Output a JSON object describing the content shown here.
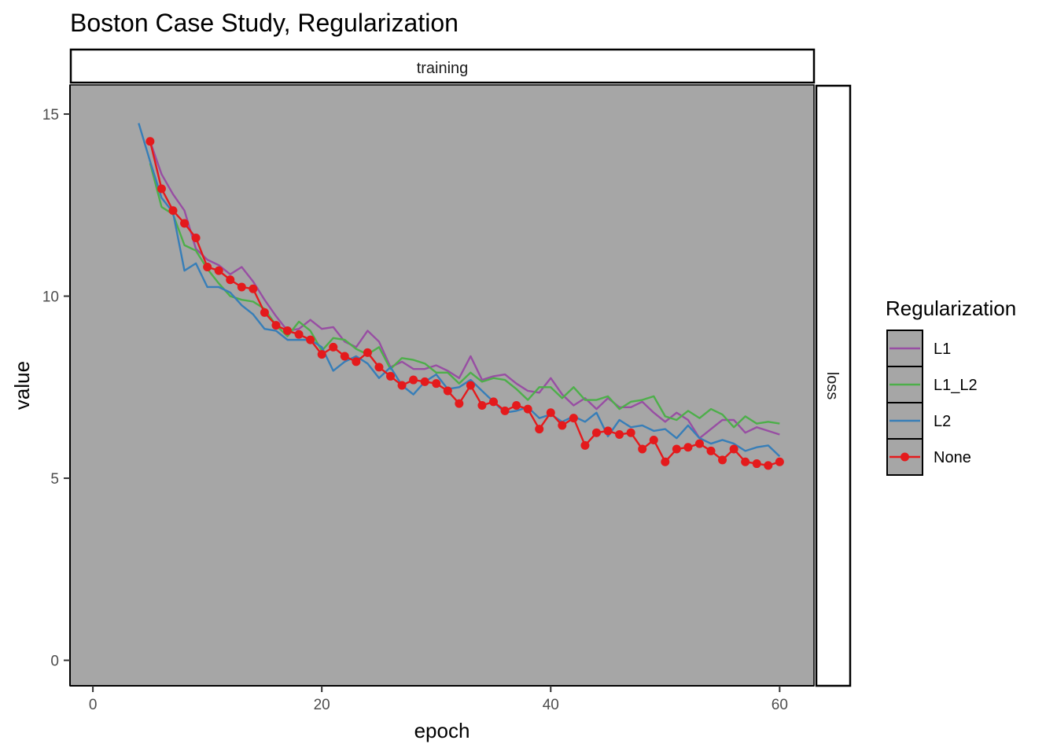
{
  "chart_data": {
    "type": "line",
    "title": "Boston Case Study, Regularization",
    "xlabel": "epoch",
    "ylabel": "value",
    "facet_top": "training",
    "facet_right": "loss",
    "xlim": [
      -2,
      63
    ],
    "ylim": [
      -0.7,
      15.8
    ],
    "x_ticks": [
      0,
      20,
      40,
      60
    ],
    "y_ticks": [
      0,
      5,
      10,
      15
    ],
    "panel_background": "#a6a6a6",
    "legend": {
      "title": "Regularization",
      "placement": "right"
    },
    "series": [
      {
        "name": "L1",
        "color": "#984ea3",
        "points": false,
        "x": [
          5,
          6,
          7,
          8,
          9,
          10,
          11,
          12,
          13,
          14,
          15,
          16,
          17,
          18,
          19,
          20,
          21,
          22,
          23,
          24,
          25,
          26,
          27,
          28,
          29,
          30,
          31,
          32,
          33,
          34,
          35,
          36,
          37,
          38,
          39,
          40,
          41,
          42,
          43,
          44,
          45,
          46,
          47,
          48,
          49,
          50,
          51,
          52,
          53,
          54,
          55,
          56,
          57,
          58,
          59,
          60
        ],
        "values": [
          14.25,
          13.35,
          12.8,
          12.35,
          11.3,
          11.0,
          10.85,
          10.6,
          10.8,
          10.4,
          9.9,
          9.45,
          9.05,
          9.1,
          9.35,
          9.1,
          9.15,
          8.75,
          8.6,
          9.05,
          8.75,
          8.05,
          8.2,
          8.0,
          8.0,
          8.1,
          7.95,
          7.75,
          8.35,
          7.7,
          7.8,
          7.85,
          7.6,
          7.4,
          7.35,
          7.75,
          7.3,
          7.0,
          7.2,
          6.9,
          7.2,
          6.95,
          6.95,
          7.1,
          6.8,
          6.55,
          6.8,
          6.6,
          6.1,
          6.35,
          6.6,
          6.6,
          6.25,
          6.4,
          6.3,
          6.2
        ]
      },
      {
        "name": "L1_L2",
        "color": "#4daf4a",
        "points": false,
        "x": [
          5,
          6,
          7,
          8,
          9,
          10,
          11,
          12,
          13,
          14,
          15,
          16,
          17,
          18,
          19,
          20,
          21,
          22,
          23,
          24,
          25,
          26,
          27,
          28,
          29,
          30,
          31,
          32,
          33,
          34,
          35,
          36,
          37,
          38,
          39,
          40,
          41,
          42,
          43,
          44,
          45,
          46,
          47,
          48,
          49,
          50,
          51,
          52,
          53,
          54,
          55,
          56,
          57,
          58,
          59,
          60
        ],
        "values": [
          13.65,
          12.45,
          12.25,
          11.4,
          11.25,
          10.75,
          10.35,
          10.0,
          9.9,
          9.85,
          9.65,
          9.2,
          8.9,
          9.3,
          9.05,
          8.5,
          8.85,
          8.8,
          8.55,
          8.4,
          8.6,
          8.0,
          8.3,
          8.25,
          8.15,
          7.9,
          7.9,
          7.6,
          7.9,
          7.65,
          7.75,
          7.7,
          7.45,
          7.15,
          7.5,
          7.5,
          7.2,
          7.5,
          7.15,
          7.15,
          7.25,
          6.9,
          7.1,
          7.15,
          7.25,
          6.7,
          6.6,
          6.85,
          6.65,
          6.9,
          6.75,
          6.4,
          6.7,
          6.5,
          6.55,
          6.5
        ]
      },
      {
        "name": "L2",
        "color": "#377eb8",
        "points": false,
        "x": [
          4,
          5,
          6,
          7,
          8,
          9,
          10,
          11,
          12,
          13,
          14,
          15,
          16,
          17,
          18,
          19,
          20,
          21,
          22,
          23,
          24,
          25,
          26,
          27,
          28,
          29,
          30,
          31,
          32,
          33,
          34,
          35,
          36,
          37,
          38,
          39,
          40,
          41,
          42,
          43,
          44,
          45,
          46,
          47,
          48,
          49,
          50,
          51,
          52,
          53,
          54,
          55,
          56,
          57,
          58,
          59,
          60
        ],
        "values": [
          14.75,
          13.7,
          12.7,
          12.3,
          10.7,
          10.9,
          10.25,
          10.25,
          10.1,
          9.75,
          9.5,
          9.1,
          9.05,
          8.8,
          8.8,
          8.8,
          8.6,
          7.95,
          8.2,
          8.35,
          8.15,
          7.75,
          8.05,
          7.55,
          7.3,
          7.65,
          7.85,
          7.45,
          7.5,
          7.7,
          7.4,
          7.1,
          6.8,
          6.85,
          6.95,
          6.65,
          6.75,
          6.55,
          6.7,
          6.55,
          6.8,
          6.15,
          6.6,
          6.4,
          6.45,
          6.3,
          6.35,
          6.1,
          6.45,
          6.1,
          5.95,
          6.05,
          5.95,
          5.75,
          5.85,
          5.9,
          5.6
        ]
      },
      {
        "name": "None",
        "color": "#e41a1c",
        "points": true,
        "x": [
          5,
          6,
          7,
          8,
          9,
          10,
          11,
          12,
          13,
          14,
          15,
          16,
          17,
          18,
          19,
          20,
          21,
          22,
          23,
          24,
          25,
          26,
          27,
          28,
          29,
          30,
          31,
          32,
          33,
          34,
          35,
          36,
          37,
          38,
          39,
          40,
          41,
          42,
          43,
          44,
          45,
          46,
          47,
          48,
          49,
          50,
          51,
          52,
          53,
          54,
          55,
          56,
          57,
          58,
          59,
          60
        ],
        "values": [
          14.25,
          12.95,
          12.35,
          12.0,
          11.6,
          10.8,
          10.7,
          10.45,
          10.25,
          10.2,
          9.55,
          9.2,
          9.05,
          8.95,
          8.8,
          8.4,
          8.6,
          8.35,
          8.2,
          8.45,
          8.05,
          7.8,
          7.55,
          7.7,
          7.65,
          7.6,
          7.4,
          7.05,
          7.55,
          7.0,
          7.1,
          6.85,
          7.0,
          6.9,
          6.35,
          6.8,
          6.45,
          6.65,
          5.9,
          6.25,
          6.3,
          6.2,
          6.25,
          5.8,
          6.05,
          5.45,
          5.8,
          5.85,
          5.95,
          5.75,
          5.5,
          5.8,
          5.45,
          5.4,
          5.35,
          5.45
        ]
      }
    ]
  }
}
